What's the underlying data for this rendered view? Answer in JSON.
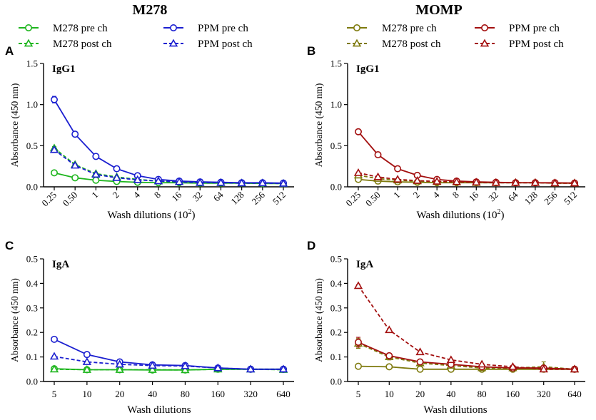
{
  "figure": {
    "left_title": "M278",
    "right_title": "MOMP",
    "legend_left": [
      {
        "label": "M278 pre ch",
        "color": "#1db51d",
        "marker": "circle",
        "dash": false
      },
      {
        "label": "PPM pre ch",
        "color": "#1b1fd0",
        "marker": "circle",
        "dash": false
      },
      {
        "label": "M278 post ch",
        "color": "#1db51d",
        "marker": "triangle",
        "dash": true
      },
      {
        "label": "PPM post ch",
        "color": "#1b1fd0",
        "marker": "triangle",
        "dash": true
      }
    ],
    "legend_right": [
      {
        "label": "M278 pre ch",
        "color": "#7e7a0d",
        "marker": "circle",
        "dash": false
      },
      {
        "label": "PPM pre ch",
        "color": "#a30f0f",
        "marker": "circle",
        "dash": false
      },
      {
        "label": "M278 post ch",
        "color": "#7e7a0d",
        "marker": "triangle",
        "dash": true
      },
      {
        "label": "PPM post ch",
        "color": "#a30f0f",
        "marker": "triangle",
        "dash": true
      }
    ]
  },
  "chart_data": [
    {
      "panel": "A",
      "subtitle": "IgG1",
      "type": "line",
      "categories": [
        "0.25",
        "0.50",
        "1",
        "2",
        "4",
        "8",
        "16",
        "32",
        "64",
        "128",
        "256",
        "512"
      ],
      "x_tick_rotate": true,
      "ylim": [
        0,
        1.5
      ],
      "yticks": [
        "0.0",
        "0.5",
        "1.0",
        "1.5"
      ],
      "ytick_values": [
        0,
        0.5,
        1.0,
        1.5
      ],
      "ylabel": "Absorbance (450 nm)",
      "xlabel": "Wash dilutions (10",
      "xlabel_sup": "2",
      "xlabel_end": ")",
      "series": [
        {
          "name": "M278 pre ch",
          "color": "#1db51d",
          "marker": "circle",
          "dash": false,
          "values": [
            0.17,
            0.11,
            0.08,
            0.065,
            0.055,
            0.05,
            0.05,
            0.045,
            0.045,
            0.045,
            0.04,
            0.04
          ],
          "err": [
            0.015,
            0,
            0,
            0,
            0,
            0,
            0,
            0,
            0,
            0,
            0,
            0
          ]
        },
        {
          "name": "M278 post ch",
          "color": "#1db51d",
          "marker": "triangle",
          "dash": true,
          "values": [
            0.47,
            0.27,
            0.16,
            0.12,
            0.09,
            0.07,
            0.06,
            0.05,
            0.05,
            0.045,
            0.045,
            0.04
          ],
          "err": [
            0.02,
            0.01,
            0,
            0,
            0,
            0,
            0,
            0,
            0,
            0,
            0,
            0
          ]
        },
        {
          "name": "PPM pre ch",
          "color": "#1b1fd0",
          "marker": "circle",
          "dash": false,
          "values": [
            1.06,
            0.64,
            0.37,
            0.22,
            0.135,
            0.09,
            0.07,
            0.06,
            0.055,
            0.05,
            0.05,
            0.045
          ],
          "err": [
            0.04,
            0.015,
            0.01,
            0,
            0,
            0,
            0,
            0,
            0,
            0,
            0,
            0
          ]
        },
        {
          "name": "PPM post ch",
          "color": "#1b1fd0",
          "marker": "triangle",
          "dash": true,
          "values": [
            0.45,
            0.26,
            0.15,
            0.11,
            0.085,
            0.07,
            0.06,
            0.05,
            0.05,
            0.045,
            0.045,
            0.04
          ],
          "err": [
            0.02,
            0.01,
            0,
            0,
            0,
            0,
            0,
            0,
            0,
            0,
            0,
            0
          ]
        }
      ]
    },
    {
      "panel": "B",
      "subtitle": "IgG1",
      "type": "line",
      "categories": [
        "0.25",
        "0.50",
        "1",
        "2",
        "4",
        "8",
        "16",
        "32",
        "64",
        "128",
        "256",
        "512"
      ],
      "x_tick_rotate": true,
      "ylim": [
        0,
        1.5
      ],
      "yticks": [
        "0.0",
        "0.5",
        "1.0",
        "1.5"
      ],
      "ytick_values": [
        0,
        0.5,
        1.0,
        1.5
      ],
      "ylabel": "Absorbance (450 nm)",
      "xlabel": "Wash dilutions (10",
      "xlabel_sup": "2",
      "xlabel_end": ")",
      "series": [
        {
          "name": "M278 pre ch",
          "color": "#7e7a0d",
          "marker": "circle",
          "dash": false,
          "values": [
            0.09,
            0.07,
            0.06,
            0.055,
            0.05,
            0.05,
            0.05,
            0.05,
            0.05,
            0.05,
            0.045,
            0.045
          ],
          "err": [
            0,
            0,
            0,
            0,
            0,
            0,
            0,
            0,
            0,
            0,
            0,
            0
          ]
        },
        {
          "name": "M278 post ch",
          "color": "#7e7a0d",
          "marker": "triangle",
          "dash": true,
          "values": [
            0.14,
            0.1,
            0.08,
            0.07,
            0.06,
            0.055,
            0.05,
            0.05,
            0.05,
            0.05,
            0.045,
            0.045
          ],
          "err": [
            0,
            0,
            0,
            0,
            0,
            0,
            0,
            0,
            0,
            0,
            0,
            0
          ]
        },
        {
          "name": "PPM pre ch",
          "color": "#a30f0f",
          "marker": "circle",
          "dash": false,
          "values": [
            0.67,
            0.39,
            0.22,
            0.14,
            0.09,
            0.07,
            0.06,
            0.055,
            0.05,
            0.05,
            0.05,
            0.045
          ],
          "err": [
            0.015,
            0.01,
            0,
            0,
            0,
            0,
            0,
            0,
            0,
            0,
            0,
            0
          ]
        },
        {
          "name": "PPM post ch",
          "color": "#a30f0f",
          "marker": "triangle",
          "dash": true,
          "values": [
            0.17,
            0.12,
            0.09,
            0.075,
            0.065,
            0.06,
            0.055,
            0.05,
            0.05,
            0.05,
            0.045,
            0.045
          ],
          "err": [
            0,
            0,
            0,
            0,
            0,
            0,
            0,
            0,
            0,
            0,
            0,
            0
          ]
        }
      ]
    },
    {
      "panel": "C",
      "subtitle": "IgA",
      "type": "line",
      "categories": [
        "5",
        "10",
        "20",
        "40",
        "80",
        "160",
        "320",
        "640"
      ],
      "x_tick_rotate": false,
      "ylim": [
        0,
        0.5
      ],
      "yticks": [
        "0.0",
        "0.1",
        "0.2",
        "0.3",
        "0.4",
        "0.5"
      ],
      "ytick_values": [
        0,
        0.1,
        0.2,
        0.3,
        0.4,
        0.5
      ],
      "ylabel": "Absorbance (450 nm)",
      "xlabel": "Wash dilutions",
      "xlabel_sup": "",
      "xlabel_end": "",
      "series": [
        {
          "name": "M278 pre ch",
          "color": "#1db51d",
          "marker": "circle",
          "dash": false,
          "values": [
            0.052,
            0.048,
            0.048,
            0.047,
            0.047,
            0.05,
            0.05,
            0.05
          ],
          "err": [
            0.003,
            0.002,
            0.003,
            0.003,
            0.002,
            0.002,
            0.002,
            0.002
          ]
        },
        {
          "name": "M278 post ch",
          "color": "#1db51d",
          "marker": "triangle",
          "dash": true,
          "values": [
            0.05,
            0.048,
            0.048,
            0.048,
            0.047,
            0.05,
            0.05,
            0.048
          ],
          "err": [
            0,
            0,
            0,
            0,
            0,
            0,
            0,
            0
          ]
        },
        {
          "name": "PPM pre ch",
          "color": "#1b1fd0",
          "marker": "circle",
          "dash": false,
          "values": [
            0.172,
            0.11,
            0.08,
            0.068,
            0.065,
            0.055,
            0.05,
            0.05
          ],
          "err": [
            0.004,
            0.003,
            0.002,
            0.002,
            0.002,
            0.002,
            0,
            0
          ]
        },
        {
          "name": "PPM post ch",
          "color": "#1b1fd0",
          "marker": "triangle",
          "dash": true,
          "values": [
            0.102,
            0.08,
            0.07,
            0.065,
            0.063,
            0.055,
            0.05,
            0.05
          ],
          "err": [
            0.003,
            0.002,
            0.002,
            0.002,
            0.002,
            0,
            0,
            0
          ]
        }
      ]
    },
    {
      "panel": "D",
      "subtitle": "IgA",
      "type": "line",
      "categories": [
        "5",
        "10",
        "20",
        "40",
        "80",
        "160",
        "320",
        "640"
      ],
      "x_tick_rotate": false,
      "ylim": [
        0,
        0.5
      ],
      "yticks": [
        "0.0",
        "0.1",
        "0.2",
        "0.3",
        "0.4",
        "0.5"
      ],
      "ytick_values": [
        0,
        0.1,
        0.2,
        0.3,
        0.4,
        0.5
      ],
      "ylabel": "Absorbance (450 nm)",
      "xlabel": "Wash dilutions",
      "xlabel_sup": "",
      "xlabel_end": "",
      "series": [
        {
          "name": "M278 pre ch",
          "color": "#7e7a0d",
          "marker": "circle",
          "dash": false,
          "values": [
            0.062,
            0.06,
            0.05,
            0.05,
            0.05,
            0.05,
            0.05,
            0.05
          ],
          "err": [
            0.003,
            0.002,
            0.002,
            0.002,
            0.002,
            0.002,
            0.002,
            0.002
          ]
        },
        {
          "name": "M278 post ch",
          "color": "#7e7a0d",
          "marker": "triangle",
          "dash": true,
          "values": [
            0.155,
            0.1,
            0.075,
            0.065,
            0.055,
            0.055,
            0.06,
            0.05
          ],
          "err": [
            0.02,
            0.012,
            0.005,
            0.003,
            0.003,
            0.003,
            0.02,
            0.005
          ]
        },
        {
          "name": "PPM pre ch",
          "color": "#a30f0f",
          "marker": "circle",
          "dash": false,
          "values": [
            0.16,
            0.105,
            0.08,
            0.07,
            0.06,
            0.055,
            0.055,
            0.05
          ],
          "err": [
            0.02,
            0.01,
            0.005,
            0.003,
            0.003,
            0.003,
            0.003,
            0.003
          ]
        },
        {
          "name": "PPM post ch",
          "color": "#a30f0f",
          "marker": "triangle",
          "dash": true,
          "values": [
            0.39,
            0.21,
            0.12,
            0.088,
            0.07,
            0.06,
            0.05,
            0.05
          ],
          "err": [
            0.005,
            0.005,
            0.004,
            0.003,
            0.003,
            0.002,
            0.002,
            0.002
          ]
        }
      ]
    }
  ]
}
